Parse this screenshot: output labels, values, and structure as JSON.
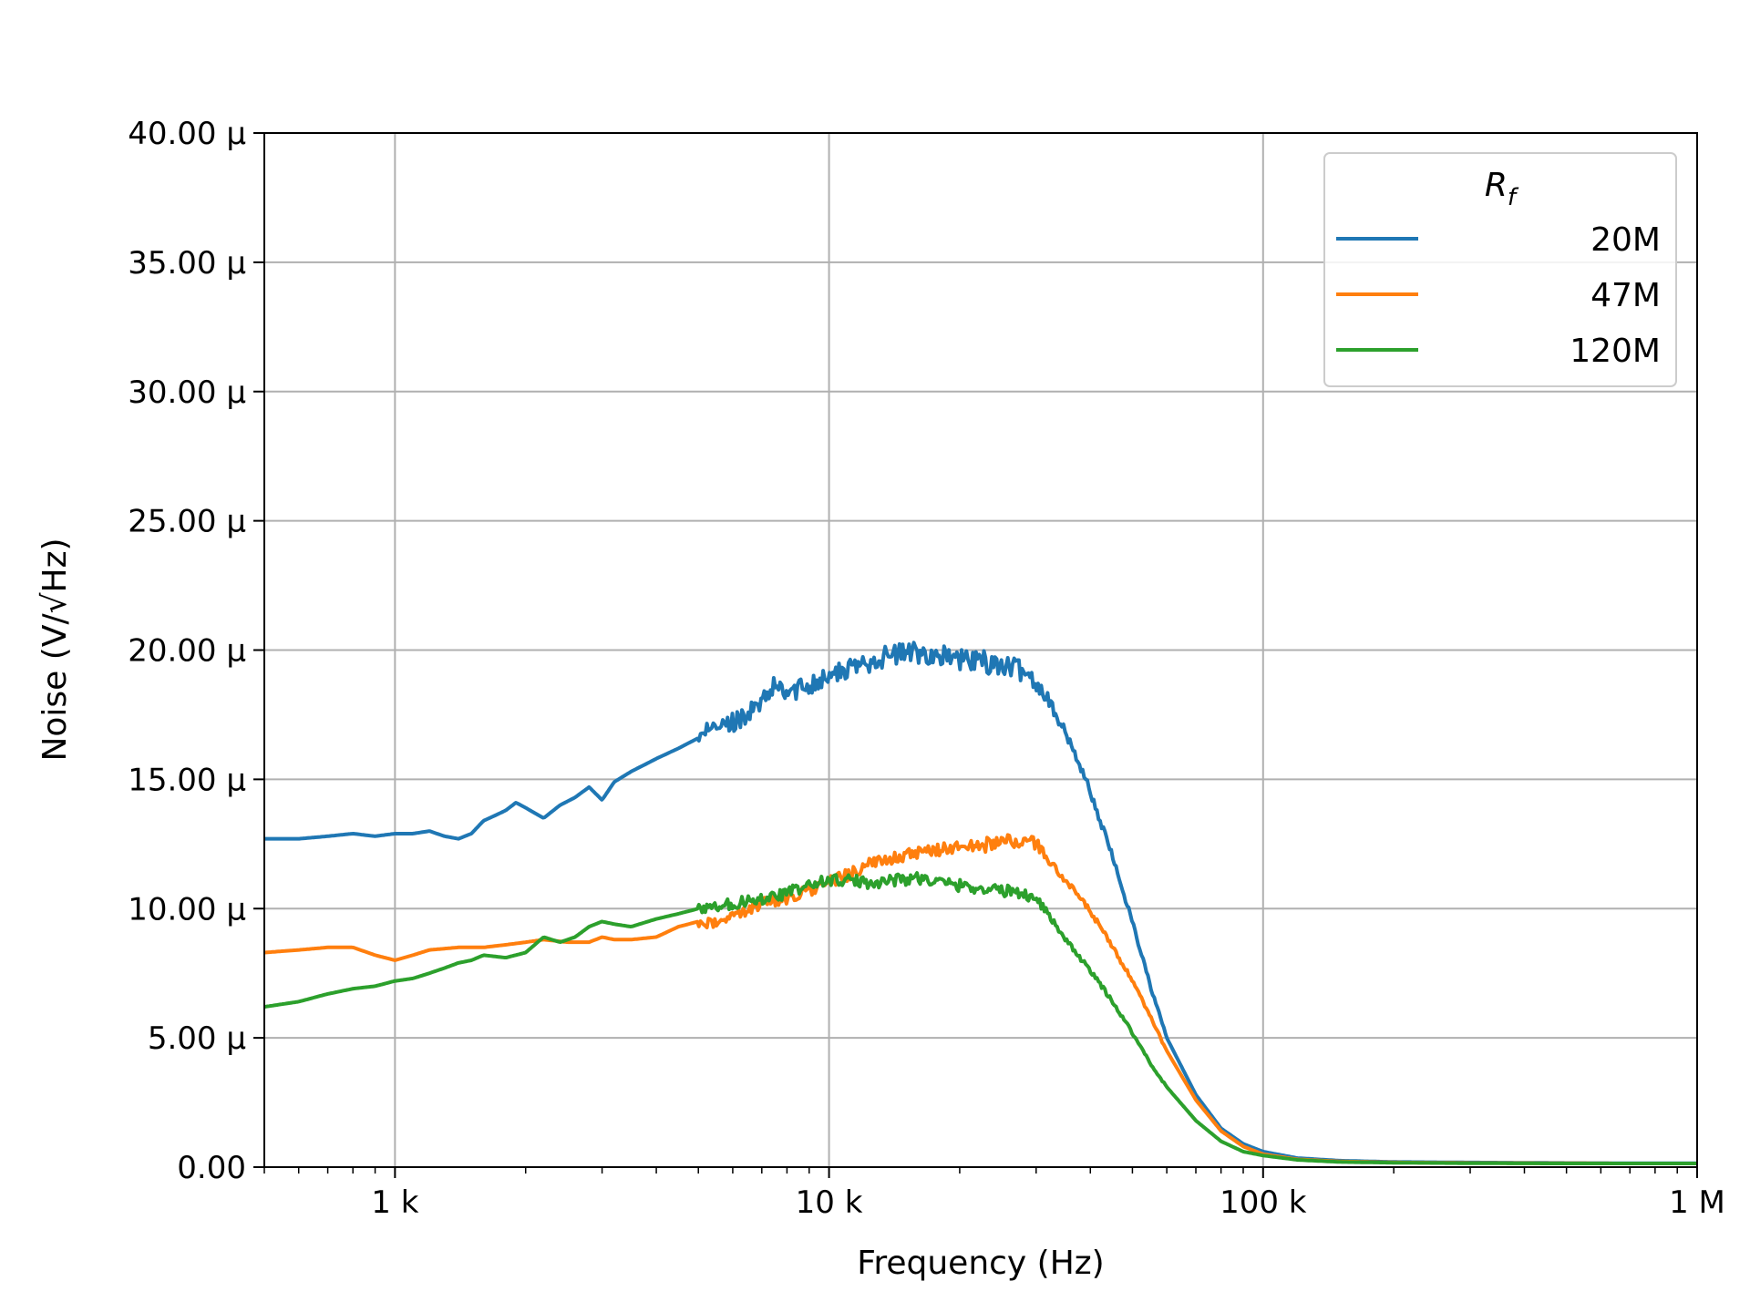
{
  "chart_data": {
    "type": "line",
    "title": "",
    "xlabel": "Frequency (Hz)",
    "ylabel": "Noise (V/√Hz)",
    "xscale": "log",
    "xlim": [
      500,
      1000000
    ],
    "ylim": [
      0,
      4e-05
    ],
    "grid": true,
    "legend": {
      "title": "R_f",
      "placement": "top-right"
    },
    "x_ticks": [
      {
        "value": 1000,
        "label": "1 k"
      },
      {
        "value": 10000,
        "label": "10 k"
      },
      {
        "value": 100000,
        "label": "100 k"
      },
      {
        "value": 1000000,
        "label": "1 M"
      }
    ],
    "y_ticks": [
      {
        "value": 0,
        "label": "0.00"
      },
      {
        "value": 5e-06,
        "label": "5.00 μ"
      },
      {
        "value": 1e-05,
        "label": "10.00 μ"
      },
      {
        "value": 1.5e-05,
        "label": "15.00 μ"
      },
      {
        "value": 2e-05,
        "label": "20.00 μ"
      },
      {
        "value": 2.5e-05,
        "label": "25.00 μ"
      },
      {
        "value": 3e-05,
        "label": "30.00 μ"
      },
      {
        "value": 3.5e-05,
        "label": "35.00 μ"
      },
      {
        "value": 4e-05,
        "label": "40.00 μ"
      }
    ],
    "series": [
      {
        "name": "20M",
        "color": "#1f77b4",
        "x": [
          500,
          600,
          700,
          800,
          900,
          1000,
          1100,
          1200,
          1300,
          1400,
          1500,
          1600,
          1700,
          1800,
          1900,
          2000,
          2200,
          2400,
          2600,
          2800,
          3000,
          3200,
          3500,
          4000,
          4500,
          5000,
          5500,
          6000,
          7000,
          7500,
          8000,
          9000,
          10000,
          11000,
          12000,
          13000,
          14000,
          15000,
          16000,
          18000,
          20000,
          22000,
          25000,
          28000,
          30000,
          32000,
          35000,
          38000,
          40000,
          45000,
          50000,
          55000,
          60000,
          70000,
          80000,
          90000,
          100000,
          120000,
          150000,
          200000,
          300000,
          500000,
          700000,
          1000000
        ],
        "values": [
          1.27e-05,
          1.27e-05,
          1.28e-05,
          1.29e-05,
          1.28e-05,
          1.29e-05,
          1.29e-05,
          1.3e-05,
          1.28e-05,
          1.27e-05,
          1.29e-05,
          1.34e-05,
          1.36e-05,
          1.38e-05,
          1.41e-05,
          1.39e-05,
          1.35e-05,
          1.4e-05,
          1.43e-05,
          1.47e-05,
          1.42e-05,
          1.49e-05,
          1.53e-05,
          1.58e-05,
          1.62e-05,
          1.66e-05,
          1.7e-05,
          1.72e-05,
          1.79e-05,
          1.86e-05,
          1.83e-05,
          1.87e-05,
          1.9e-05,
          1.92e-05,
          1.95e-05,
          1.97e-05,
          1.98e-05,
          1.99e-05,
          1.99e-05,
          1.98e-05,
          1.96e-05,
          1.96e-05,
          1.94e-05,
          1.92e-05,
          1.88e-05,
          1.81e-05,
          1.68e-05,
          1.55e-05,
          1.45e-05,
          1.2e-05,
          9.5e-06,
          7e-06,
          5e-06,
          2.8e-06,
          1.5e-06,
          9e-07,
          6e-07,
          3.5e-07,
          2.5e-07,
          2e-07,
          1.8e-07,
          1.6e-07,
          1.5e-07,
          1.5e-07
        ]
      },
      {
        "name": "47M",
        "color": "#ff7f0e",
        "x": [
          500,
          600,
          700,
          800,
          900,
          1000,
          1100,
          1200,
          1400,
          1600,
          1800,
          2000,
          2200,
          2500,
          2800,
          3000,
          3200,
          3500,
          4000,
          4500,
          5000,
          5500,
          6000,
          7000,
          8000,
          9000,
          10000,
          11000,
          12000,
          14000,
          16000,
          18000,
          20000,
          22000,
          25000,
          28000,
          30000,
          32000,
          35000,
          40000,
          45000,
          50000,
          55000,
          60000,
          70000,
          80000,
          90000,
          100000,
          120000,
          150000,
          200000,
          300000,
          500000,
          700000,
          1000000
        ],
        "values": [
          8.3e-06,
          8.4e-06,
          8.5e-06,
          8.5e-06,
          8.2e-06,
          8e-06,
          8.2e-06,
          8.4e-06,
          8.5e-06,
          8.5e-06,
          8.6e-06,
          8.7e-06,
          8.8e-06,
          8.7e-06,
          8.7e-06,
          8.9e-06,
          8.8e-06,
          8.8e-06,
          8.9e-06,
          9.3e-06,
          9.5e-06,
          9.4e-06,
          9.7e-06,
          1.02e-05,
          1.04e-05,
          1.07e-05,
          1.1e-05,
          1.13e-05,
          1.16e-05,
          1.2e-05,
          1.21e-05,
          1.23e-05,
          1.24e-05,
          1.24e-05,
          1.26e-05,
          1.26e-05,
          1.25e-05,
          1.19e-05,
          1.11e-05,
          9.9e-06,
          8.5e-06,
          7.2e-06,
          5.8e-06,
          4.5e-06,
          2.6e-06,
          1.4e-06,
          8e-07,
          5e-07,
          3e-07,
          2.2e-07,
          1.8e-07,
          1.6e-07,
          1.5e-07,
          1.4e-07,
          1.4e-07
        ]
      },
      {
        "name": "120M",
        "color": "#2ca02c",
        "x": [
          500,
          600,
          700,
          800,
          900,
          1000,
          1100,
          1200,
          1300,
          1400,
          1500,
          1600,
          1800,
          2000,
          2200,
          2400,
          2600,
          2800,
          3000,
          3200,
          3500,
          4000,
          4500,
          5000,
          5500,
          6000,
          7000,
          8000,
          9000,
          10000,
          11000,
          12000,
          14000,
          16000,
          18000,
          20000,
          22000,
          25000,
          28000,
          30000,
          32000,
          35000,
          40000,
          45000,
          50000,
          55000,
          60000,
          70000,
          80000,
          90000,
          100000,
          120000,
          150000,
          200000,
          300000,
          500000,
          700000,
          1000000
        ],
        "values": [
          6.2e-06,
          6.4e-06,
          6.7e-06,
          6.9e-06,
          7e-06,
          7.2e-06,
          7.3e-06,
          7.5e-06,
          7.7e-06,
          7.9e-06,
          8e-06,
          8.2e-06,
          8.1e-06,
          8.3e-06,
          8.9e-06,
          8.7e-06,
          8.9e-06,
          9.3e-06,
          9.5e-06,
          9.4e-06,
          9.3e-06,
          9.6e-06,
          9.8e-06,
          1e-05,
          1.01e-05,
          1.02e-05,
          1.04e-05,
          1.06e-05,
          1.09e-05,
          1.11e-05,
          1.11e-05,
          1.1e-05,
          1.11e-05,
          1.12e-05,
          1.1e-05,
          1.09e-05,
          1.08e-05,
          1.07e-05,
          1.06e-05,
          1.04e-05,
          9.8e-06,
          8.8e-06,
          7.6e-06,
          6.4e-06,
          5.2e-06,
          4e-06,
          3.1e-06,
          1.8e-06,
          1e-06,
          6e-07,
          4.5e-07,
          2.8e-07,
          2e-07,
          1.7e-07,
          1.5e-07,
          1.4e-07,
          1.4e-07,
          1.4e-07
        ]
      }
    ]
  }
}
